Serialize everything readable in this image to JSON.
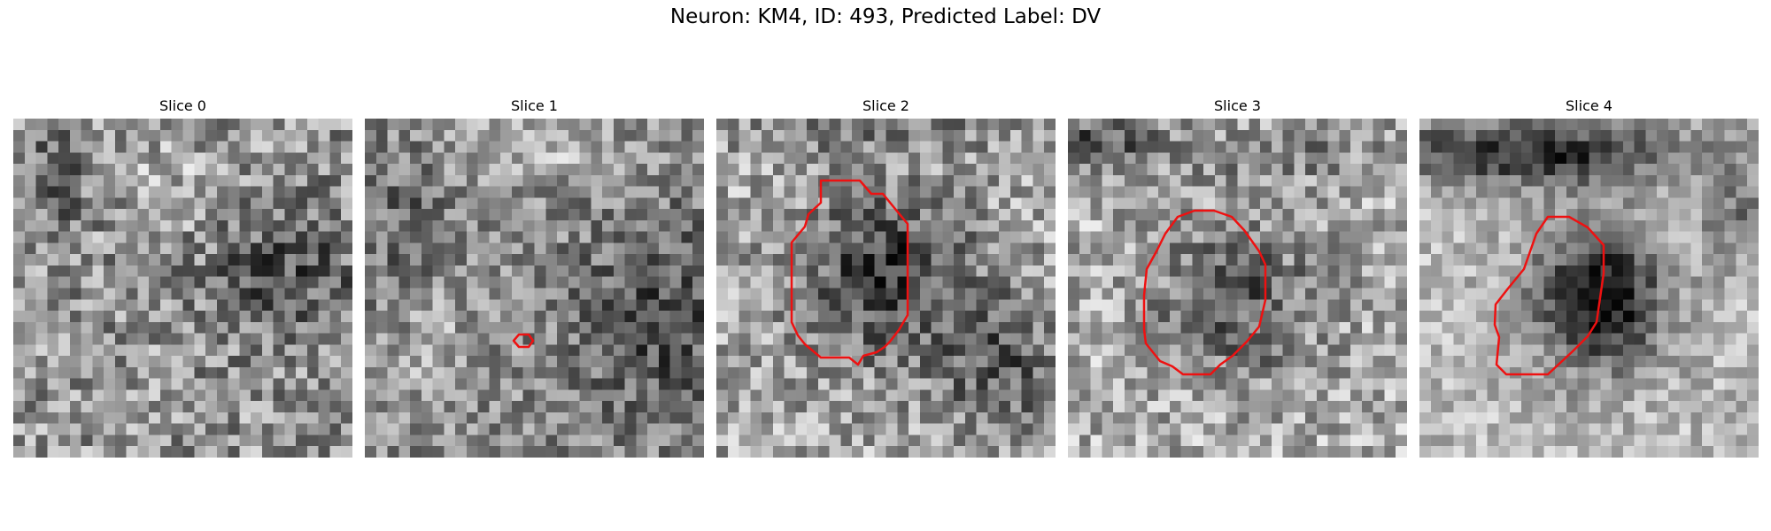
{
  "figure": {
    "title": "Neuron: KM4, ID: 493, Predicted Label: DV",
    "contour_color": "#ee1111"
  },
  "panels": [
    {
      "title": "Slice 0",
      "has_contour": false
    },
    {
      "title": "Slice 1",
      "has_contour": true
    },
    {
      "title": "Slice 2",
      "has_contour": true
    },
    {
      "title": "Slice 3",
      "has_contour": true
    },
    {
      "title": "Slice 4",
      "has_contour": true
    }
  ]
}
